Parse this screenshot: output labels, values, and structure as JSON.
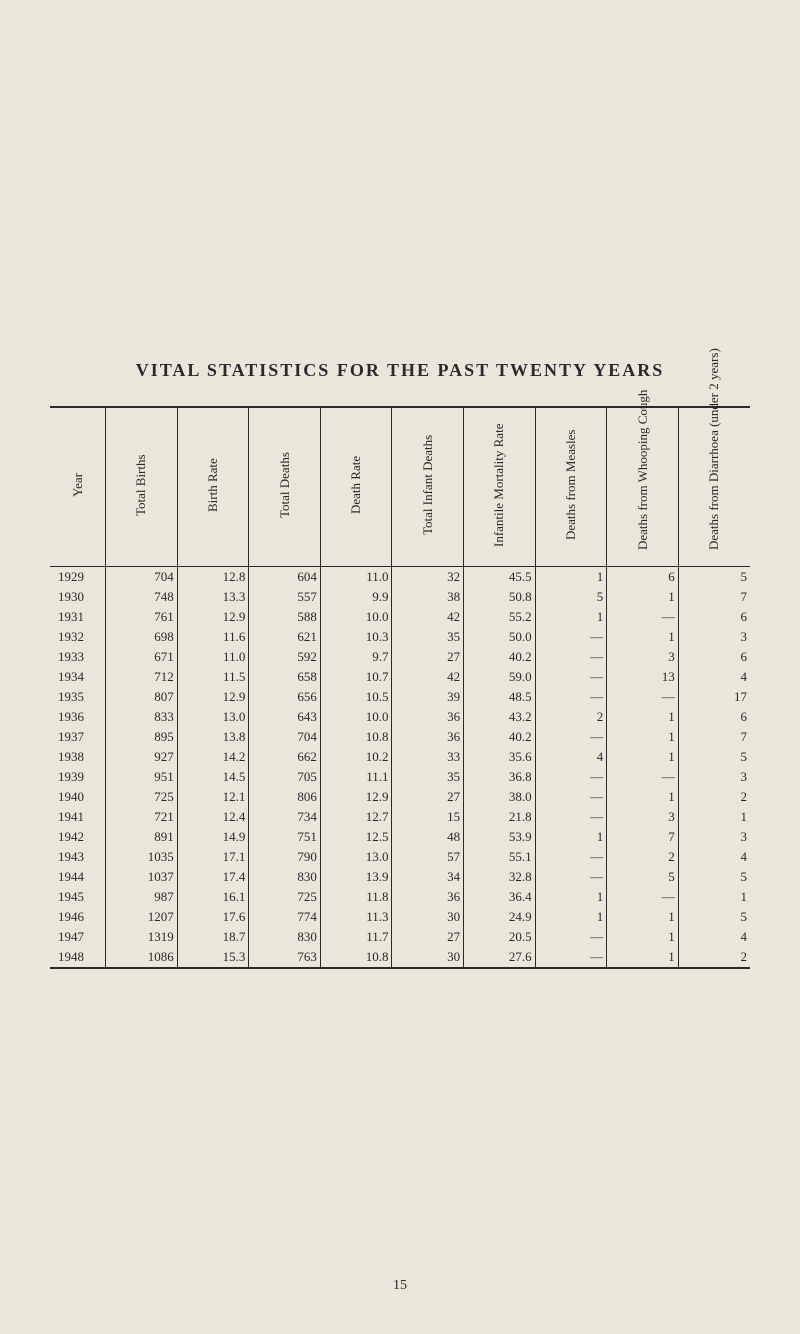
{
  "title": "VITAL STATISTICS FOR THE PAST TWENTY YEARS",
  "page_number": "15",
  "table": {
    "headers": [
      "Year",
      "Total Births",
      "Birth Rate",
      "Total Deaths",
      "Death Rate",
      "Total\nInfant Deaths",
      "Infantile\nMortality Rate",
      "Deaths from\nMeasles",
      "Deaths from\nWhooping Cough",
      "Deaths from\nDiarrhoea\n(under 2 years)"
    ],
    "rows": [
      [
        "1929",
        "704",
        "12.8",
        "604",
        "11.0",
        "32",
        "45.5",
        "1",
        "6",
        "5"
      ],
      [
        "1930",
        "748",
        "13.3",
        "557",
        "9.9",
        "38",
        "50.8",
        "5",
        "1",
        "7"
      ],
      [
        "1931",
        "761",
        "12.9",
        "588",
        "10.0",
        "42",
        "55.2",
        "1",
        "—",
        "6"
      ],
      [
        "1932",
        "698",
        "11.6",
        "621",
        "10.3",
        "35",
        "50.0",
        "—",
        "1",
        "3"
      ],
      [
        "1933",
        "671",
        "11.0",
        "592",
        "9.7",
        "27",
        "40.2",
        "—",
        "3",
        "6"
      ],
      [
        "1934",
        "712",
        "11.5",
        "658",
        "10.7",
        "42",
        "59.0",
        "—",
        "13",
        "4"
      ],
      [
        "1935",
        "807",
        "12.9",
        "656",
        "10.5",
        "39",
        "48.5",
        "—",
        "—",
        "17"
      ],
      [
        "1936",
        "833",
        "13.0",
        "643",
        "10.0",
        "36",
        "43.2",
        "2",
        "1",
        "6"
      ],
      [
        "1937",
        "895",
        "13.8",
        "704",
        "10.8",
        "36",
        "40.2",
        "—",
        "1",
        "7"
      ],
      [
        "1938",
        "927",
        "14.2",
        "662",
        "10.2",
        "33",
        "35.6",
        "4",
        "1",
        "5"
      ],
      [
        "1939",
        "951",
        "14.5",
        "705",
        "11.1",
        "35",
        "36.8",
        "—",
        "—",
        "3"
      ],
      [
        "1940",
        "725",
        "12.1",
        "806",
        "12.9",
        "27",
        "38.0",
        "—",
        "1",
        "2"
      ],
      [
        "1941",
        "721",
        "12.4",
        "734",
        "12.7",
        "15",
        "21.8",
        "—",
        "3",
        "1"
      ],
      [
        "1942",
        "891",
        "14.9",
        "751",
        "12.5",
        "48",
        "53.9",
        "1",
        "7",
        "3"
      ],
      [
        "1943",
        "1035",
        "17.1",
        "790",
        "13.0",
        "57",
        "55.1",
        "—",
        "2",
        "4"
      ],
      [
        "1944",
        "1037",
        "17.4",
        "830",
        "13.9",
        "34",
        "32.8",
        "—",
        "5",
        "5"
      ],
      [
        "1945",
        "987",
        "16.1",
        "725",
        "11.8",
        "36",
        "36.4",
        "1",
        "—",
        "1"
      ],
      [
        "1946",
        "1207",
        "17.6",
        "774",
        "11.3",
        "30",
        "24.9",
        "1",
        "1",
        "5"
      ],
      [
        "1947",
        "1319",
        "18.7",
        "830",
        "11.7",
        "27",
        "20.5",
        "—",
        "1",
        "4"
      ],
      [
        "1948",
        "1086",
        "15.3",
        "763",
        "10.8",
        "30",
        "27.6",
        "—",
        "1",
        "2"
      ]
    ]
  },
  "style": {
    "background_color": "#eae6da",
    "text_color": "#2a2a2a",
    "title_fontsize": 18,
    "body_fontsize": 13,
    "border_color": "#2a2a2a"
  }
}
